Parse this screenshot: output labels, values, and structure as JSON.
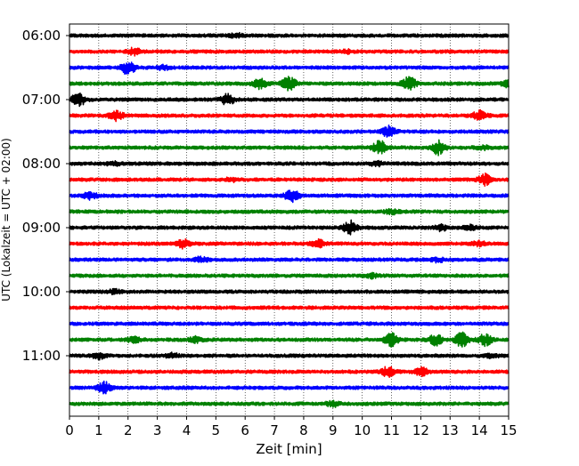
{
  "chart_data": {
    "type": "line",
    "title": "",
    "xlabel": "Zeit  [min]",
    "ylabel": "UTC (Lokalzeit = UTC + 02:00)",
    "xlim": [
      0,
      15
    ],
    "x_ticks": [
      "0",
      "1",
      "2",
      "3",
      "4",
      "5",
      "6",
      "7",
      "8",
      "9",
      "10",
      "11",
      "12",
      "13",
      "14",
      "15"
    ],
    "y_tick_labels": [
      "06:00",
      "07:00",
      "08:00",
      "09:00",
      "10:00",
      "11:00"
    ],
    "grid_x": true,
    "trace_colors": [
      "#000000",
      "#ff0000",
      "#0000ff",
      "#008000"
    ],
    "rows": [
      {
        "label": "06:00",
        "color": "#000000",
        "events": [
          [
            5.7,
            0.3
          ]
        ]
      },
      {
        "label": "06:15",
        "color": "#ff0000",
        "events": [
          [
            2.2,
            0.5
          ],
          [
            9.5,
            0.2
          ]
        ]
      },
      {
        "label": "06:30",
        "color": "#0000ff",
        "events": [
          [
            2.0,
            1.0
          ],
          [
            3.2,
            0.3
          ]
        ]
      },
      {
        "label": "06:45",
        "color": "#008000",
        "events": [
          [
            6.5,
            0.7
          ],
          [
            7.5,
            1.0
          ],
          [
            11.6,
            1.0
          ],
          [
            15.0,
            0.5
          ]
        ]
      },
      {
        "label": "07:00",
        "color": "#000000",
        "events": [
          [
            0.3,
            1.0
          ],
          [
            5.4,
            0.8
          ]
        ]
      },
      {
        "label": "07:15",
        "color": "#ff0000",
        "events": [
          [
            1.6,
            0.7
          ],
          [
            14.0,
            0.7
          ]
        ]
      },
      {
        "label": "07:30",
        "color": "#0000ff",
        "events": [
          [
            10.9,
            0.8
          ]
        ]
      },
      {
        "label": "07:45",
        "color": "#008000",
        "events": [
          [
            10.6,
            1.0
          ],
          [
            12.6,
            1.0
          ],
          [
            14.1,
            0.3
          ]
        ]
      },
      {
        "label": "08:00",
        "color": "#000000",
        "events": [
          [
            1.5,
            0.3
          ],
          [
            10.5,
            0.3
          ]
        ]
      },
      {
        "label": "08:15",
        "color": "#ff0000",
        "events": [
          [
            5.5,
            0.3
          ],
          [
            14.2,
            0.8
          ]
        ]
      },
      {
        "label": "08:30",
        "color": "#0000ff",
        "events": [
          [
            0.7,
            0.5
          ],
          [
            7.6,
            0.9
          ]
        ]
      },
      {
        "label": "08:45",
        "color": "#008000",
        "events": [
          [
            11.0,
            0.3
          ]
        ]
      },
      {
        "label": "09:00",
        "color": "#000000",
        "events": [
          [
            9.6,
            1.0
          ],
          [
            12.7,
            0.4
          ],
          [
            13.7,
            0.3
          ]
        ]
      },
      {
        "label": "09:15",
        "color": "#ff0000",
        "events": [
          [
            3.9,
            0.6
          ],
          [
            8.5,
            0.5
          ],
          [
            14.0,
            0.3
          ]
        ]
      },
      {
        "label": "09:30",
        "color": "#0000ff",
        "events": [
          [
            4.5,
            0.4
          ],
          [
            12.6,
            0.3
          ]
        ]
      },
      {
        "label": "09:45",
        "color": "#008000",
        "events": [
          [
            10.3,
            0.3
          ]
        ]
      },
      {
        "label": "10:00",
        "color": "#000000",
        "events": [
          [
            1.5,
            0.3
          ]
        ]
      },
      {
        "label": "10:15",
        "color": "#ff0000",
        "events": []
      },
      {
        "label": "10:30",
        "color": "#0000ff",
        "events": []
      },
      {
        "label": "10:45",
        "color": "#008000",
        "events": [
          [
            2.2,
            0.4
          ],
          [
            4.3,
            0.4
          ],
          [
            11.0,
            1.0
          ],
          [
            12.5,
            0.8
          ],
          [
            13.4,
            1.0
          ],
          [
            14.2,
            0.8
          ]
        ]
      },
      {
        "label": "11:00",
        "color": "#000000",
        "events": [
          [
            1.0,
            0.4
          ],
          [
            3.5,
            0.3
          ],
          [
            14.4,
            0.3
          ]
        ]
      },
      {
        "label": "11:15",
        "color": "#ff0000",
        "events": [
          [
            10.9,
            0.8
          ],
          [
            12.0,
            0.6
          ]
        ]
      },
      {
        "label": "11:30",
        "color": "#0000ff",
        "events": [
          [
            1.2,
            0.8
          ]
        ]
      },
      {
        "label": "11:45",
        "color": "#008000",
        "events": [
          [
            9.0,
            0.4
          ]
        ]
      }
    ]
  }
}
